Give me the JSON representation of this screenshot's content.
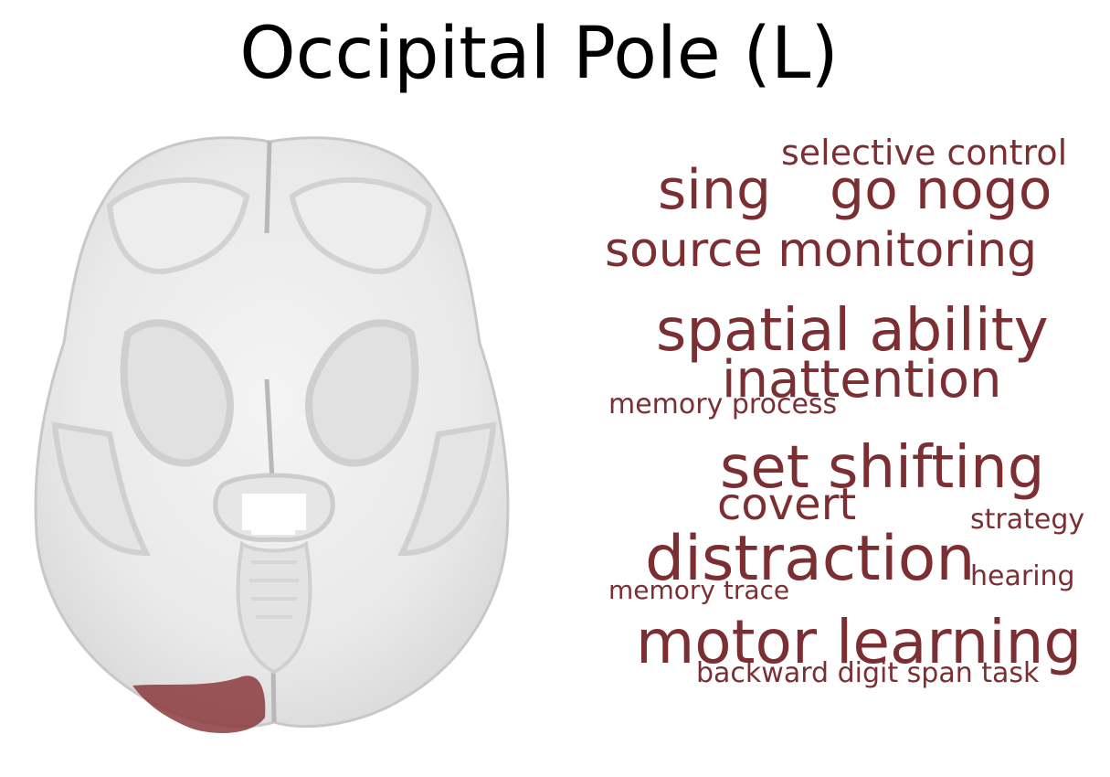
{
  "title": "Occipital Pole (L)",
  "accent_color": "#7b2f33",
  "region_color": "#8b3a3e",
  "word_cloud": {
    "words": [
      {
        "text": "selective control"
      },
      {
        "text": "sing"
      },
      {
        "text": "go nogo"
      },
      {
        "text": "source monitoring"
      },
      {
        "text": "spatial ability"
      },
      {
        "text": "inattention"
      },
      {
        "text": "memory process"
      },
      {
        "text": "set shifting"
      },
      {
        "text": "covert"
      },
      {
        "text": "strategy"
      },
      {
        "text": "distraction"
      },
      {
        "text": "hearing"
      },
      {
        "text": "memory trace"
      },
      {
        "text": "motor learning"
      },
      {
        "text": "backward digit span task"
      }
    ]
  }
}
